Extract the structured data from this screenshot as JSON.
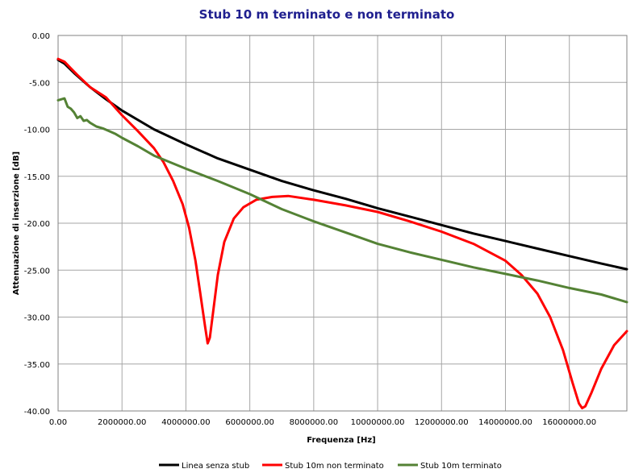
{
  "chart_data": {
    "type": "line",
    "title": "Stub 10 m terminato e non terminato",
    "xlabel": "Frequenza [Hz]",
    "ylabel": "Attenuazione di inserzione [dB]",
    "xlim": [
      0,
      17800000
    ],
    "ylim": [
      -40,
      0
    ],
    "grid": true,
    "legend_position": "bottom",
    "x_ticks": [
      0,
      2000000,
      4000000,
      6000000,
      8000000,
      10000000,
      12000000,
      14000000,
      16000000
    ],
    "x_tick_labels": [
      "0.00",
      "2000000.00",
      "4000000.00",
      "6000000.00",
      "8000000.00",
      "10000000.00",
      "12000000.00",
      "14000000.00",
      "16000000.00"
    ],
    "y_ticks": [
      0,
      -5,
      -10,
      -15,
      -20,
      -25,
      -30,
      -35,
      -40
    ],
    "y_tick_labels": [
      "0.00",
      "-5.00",
      "-10.00",
      "-15.00",
      "-20.00",
      "-25.00",
      "-30.00",
      "-35.00",
      "-40.00"
    ],
    "series": [
      {
        "name": "Linea senza stub",
        "color": "#000000",
        "x": [
          0,
          200000,
          500000,
          1000000,
          1500000,
          2000000,
          3000000,
          4000000,
          5000000,
          6000000,
          7000000,
          8000000,
          9000000,
          10000000,
          11000000,
          12000000,
          13000000,
          14000000,
          15000000,
          16000000,
          17000000,
          17800000
        ],
        "y": [
          -2.6,
          -3.0,
          -4.0,
          -5.5,
          -6.8,
          -8.0,
          -10.0,
          -11.6,
          -13.1,
          -14.3,
          -15.5,
          -16.5,
          -17.4,
          -18.4,
          -19.3,
          -20.2,
          -21.1,
          -21.9,
          -22.7,
          -23.5,
          -24.3,
          -24.9
        ]
      },
      {
        "name": "Stub 10m non terminato",
        "color": "#ff0000",
        "x": [
          0,
          200000,
          400000,
          600000,
          1000000,
          1500000,
          2000000,
          2500000,
          3000000,
          3300000,
          3600000,
          3900000,
          4100000,
          4300000,
          4450000,
          4600000,
          4680000,
          4750000,
          4850000,
          5000000,
          5200000,
          5500000,
          5800000,
          6200000,
          6700000,
          7200000,
          8000000,
          9000000,
          10000000,
          11000000,
          12000000,
          13000000,
          14000000,
          14500000,
          15000000,
          15400000,
          15800000,
          16100000,
          16300000,
          16400000,
          16500000,
          16700000,
          17000000,
          17400000,
          17800000
        ],
        "y": [
          -2.5,
          -2.8,
          -3.5,
          -4.2,
          -5.5,
          -6.6,
          -8.5,
          -10.2,
          -12.0,
          -13.5,
          -15.5,
          -18.0,
          -20.5,
          -24.0,
          -27.5,
          -31.0,
          -32.8,
          -32.2,
          -29.5,
          -25.5,
          -22.0,
          -19.5,
          -18.3,
          -17.5,
          -17.2,
          -17.1,
          -17.5,
          -18.1,
          -18.8,
          -19.8,
          -20.9,
          -22.2,
          -24.0,
          -25.5,
          -27.5,
          -30.0,
          -33.5,
          -37.0,
          -39.2,
          -39.7,
          -39.5,
          -38.0,
          -35.5,
          -33.0,
          -31.5
        ]
      },
      {
        "name": "Stub 10m terminato",
        "color": "#548235",
        "x": [
          0,
          200000,
          300000,
          400000,
          500000,
          600000,
          700000,
          800000,
          900000,
          1000000,
          1200000,
          1400000,
          1600000,
          1800000,
          2000000,
          2500000,
          3000000,
          4000000,
          5000000,
          6000000,
          7000000,
          8000000,
          9000000,
          10000000,
          11000000,
          12000000,
          13000000,
          14000000,
          15000000,
          16000000,
          17000000,
          17800000
        ],
        "y": [
          -6.9,
          -6.7,
          -7.6,
          -7.8,
          -8.2,
          -8.8,
          -8.6,
          -9.1,
          -9.0,
          -9.3,
          -9.7,
          -9.9,
          -10.2,
          -10.5,
          -10.9,
          -11.8,
          -12.8,
          -14.2,
          -15.5,
          -16.9,
          -18.5,
          -19.8,
          -21.0,
          -22.2,
          -23.1,
          -23.9,
          -24.7,
          -25.4,
          -26.1,
          -26.9,
          -27.6,
          -28.4
        ]
      }
    ]
  }
}
